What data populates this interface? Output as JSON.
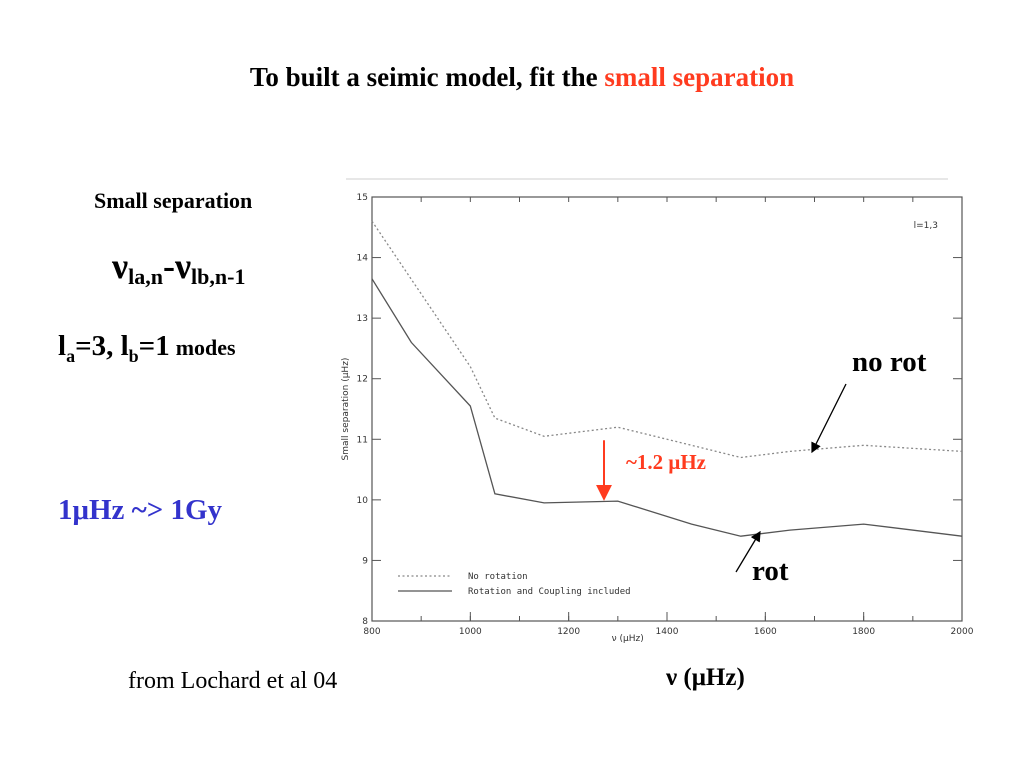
{
  "slide": {
    "title_prefix": "To built a seimic model, fit the",
    "title_accent": "small separation",
    "left_heading": "Small separation",
    "formula": {
      "nu1": "ν",
      "sub1": "la,n",
      "dash": "-",
      "nu2": "ν",
      "sub2": "lb,n-1"
    },
    "modes": {
      "la": "l",
      "la_sub": "a",
      "la_val": "=3, ",
      "lb": "l",
      "lb_sub": "b",
      "lb_val": "=1",
      "word": "modes"
    },
    "conversion": "1μHz  ~> 1Gy",
    "caption": "from Lochard et al  04",
    "x_axis_big_label": "ν (μHz)",
    "annotations": {
      "no_rot": "no rot",
      "rot": "rot",
      "delta": "~1.2 μHz"
    },
    "colors": {
      "accent": "#ff3b1f",
      "conversion": "#3333cc"
    }
  },
  "chart_data": {
    "type": "line",
    "xlabel": "ν (μHz)",
    "ylabel": "Small separation (μHz)",
    "xlim": [
      800,
      2000
    ],
    "ylim": [
      8,
      15
    ],
    "x_ticks": [
      "800",
      "1000",
      "1200",
      "1400",
      "1600",
      "1800",
      "2000"
    ],
    "x_ticks_minor": [
      "800",
      "900",
      "1000",
      "1100",
      "1200",
      "1300",
      "1400",
      "1500",
      "1600",
      "1700",
      "1800",
      "1900",
      "2000"
    ],
    "y_ticks": [
      "8",
      "9",
      "10",
      "11",
      "12",
      "13",
      "14",
      "15"
    ],
    "panel_label": "l=1,3",
    "legend_placement": "bottom-left",
    "series": [
      {
        "name": "No rotation",
        "style": "dotted",
        "x": [
          800,
          900,
          1000,
          1050,
          1150,
          1300,
          1450,
          1550,
          1650,
          1800,
          2000
        ],
        "y": [
          14.6,
          13.4,
          12.2,
          11.35,
          11.05,
          11.2,
          10.9,
          10.7,
          10.8,
          10.9,
          10.8
        ]
      },
      {
        "name": "Rotation and Coupling included",
        "style": "solid",
        "x": [
          800,
          880,
          1000,
          1050,
          1150,
          1300,
          1450,
          1550,
          1650,
          1800,
          2000
        ],
        "y": [
          13.65,
          12.6,
          11.55,
          10.1,
          9.95,
          9.98,
          9.6,
          9.4,
          9.5,
          9.6,
          9.4
        ]
      }
    ],
    "annotations": [
      {
        "text": "~1.2 μHz",
        "x": 1150,
        "y_from": 11.05,
        "y_to": 9.95
      }
    ]
  }
}
